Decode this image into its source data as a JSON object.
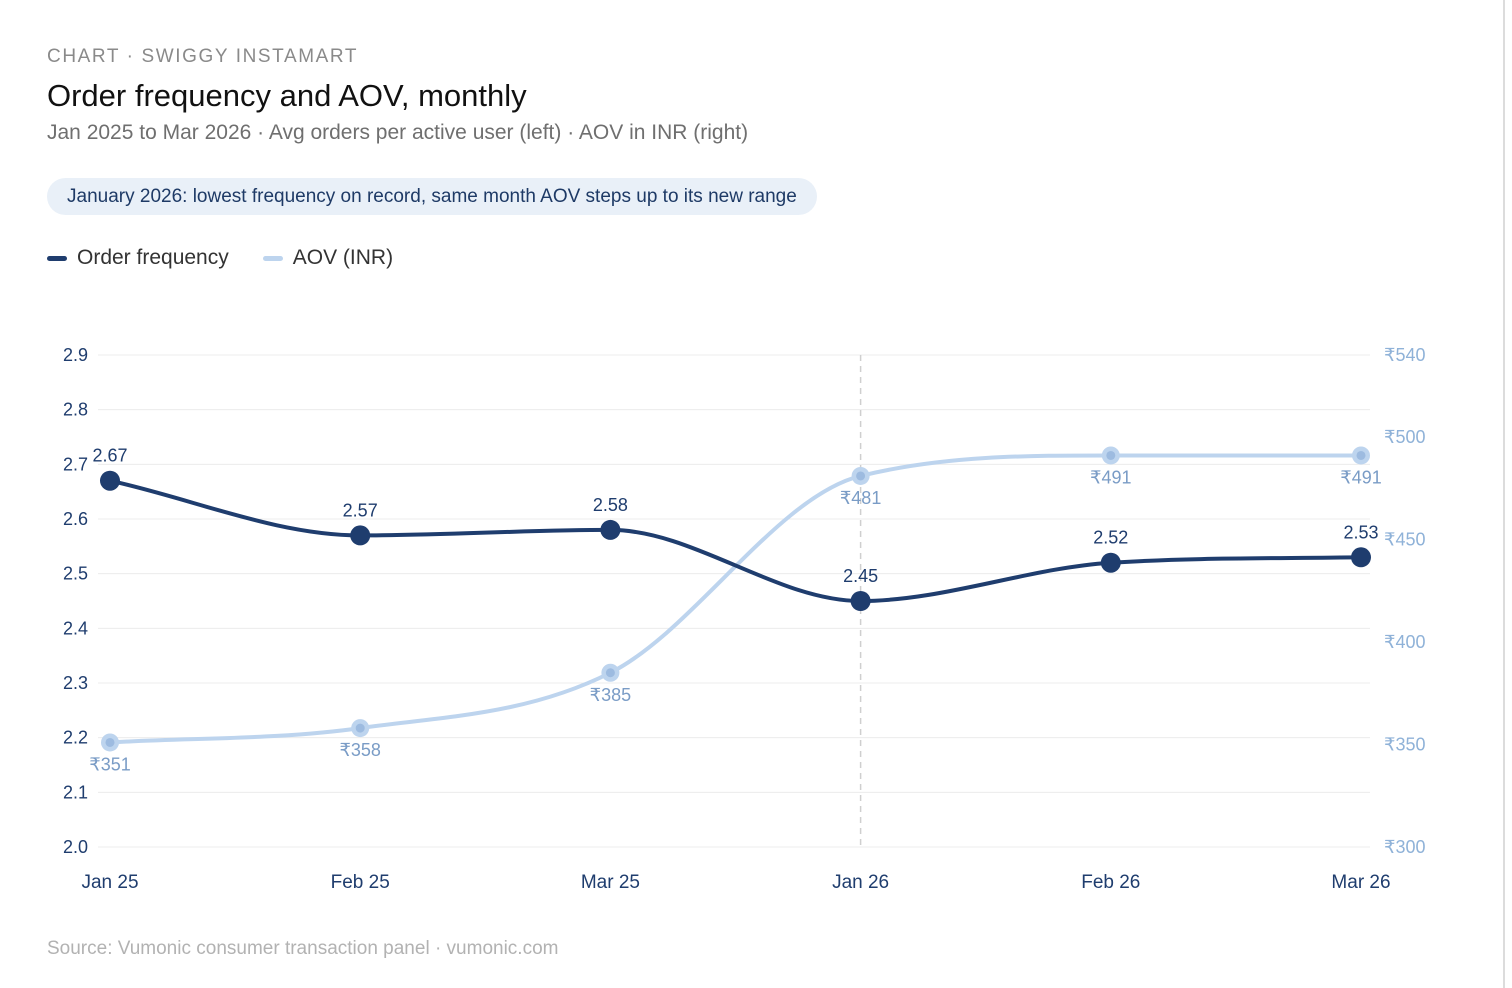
{
  "header": {
    "eyebrow": "CHART · SWIGGY INSTAMART",
    "title": "Order frequency and AOV, monthly",
    "subtitle": "Jan 2025 to Mar 2026 · Avg orders per active user (left) · AOV in INR (right)",
    "callout": "January 2026: lowest frequency on record, same month AOV steps up to its new range"
  },
  "legend": [
    {
      "label": "Order frequency",
      "color": "#1f3d6e"
    },
    {
      "label": "AOV (INR)",
      "color": "#bdd4ee"
    }
  ],
  "chart_data": {
    "type": "line",
    "categories": [
      "Jan 25",
      "Feb 25",
      "Mar 25",
      "Jan 26",
      "Feb 26",
      "Mar 26"
    ],
    "series": [
      {
        "name": "Order frequency",
        "axis": "left",
        "color": "#1f3d6e",
        "values": [
          2.67,
          2.57,
          2.58,
          2.45,
          2.52,
          2.53
        ],
        "labels": [
          "2.67",
          "2.57",
          "2.58",
          "2.45",
          "2.52",
          "2.53"
        ]
      },
      {
        "name": "AOV (INR)",
        "axis": "right",
        "color": "#bdd4ee",
        "values": [
          351,
          358,
          385,
          481,
          491,
          491
        ],
        "labels": [
          "₹351",
          "₹358",
          "₹385",
          "₹481",
          "₹491",
          "₹491"
        ]
      }
    ],
    "y_left": {
      "range": [
        2.0,
        2.9
      ],
      "ticks": [
        2.0,
        2.1,
        2.2,
        2.3,
        2.4,
        2.5,
        2.6,
        2.7,
        2.8,
        2.9
      ],
      "tick_labels": [
        "2.0",
        "2.1",
        "2.2",
        "2.3",
        "2.4",
        "2.5",
        "2.6",
        "2.7",
        "2.8",
        "2.9"
      ]
    },
    "y_right": {
      "range": [
        300,
        540
      ],
      "ticks": [
        300,
        350,
        400,
        450,
        500,
        540
      ],
      "tick_labels": [
        "₹300",
        "₹350",
        "₹400",
        "₹450",
        "₹500",
        "₹540"
      ],
      "color": "#8fb2d8"
    },
    "highlight_category": "Jan 26",
    "grid": true,
    "legend_position": "top-left"
  },
  "footer": {
    "source": "Source: Vumonic consumer transaction panel · vumonic.com"
  }
}
